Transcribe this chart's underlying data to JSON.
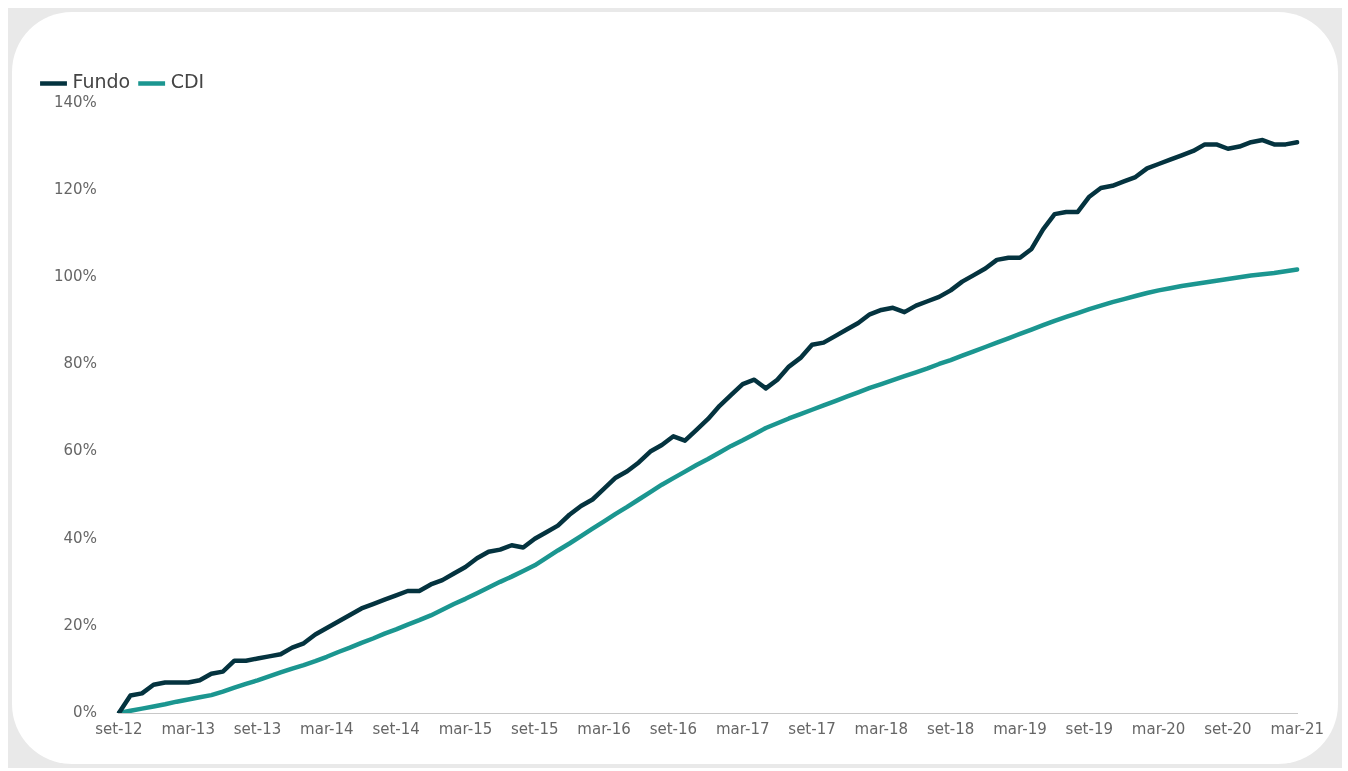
{
  "chart_data": {
    "type": "line",
    "categories": [
      "set-12",
      null,
      null,
      null,
      null,
      null,
      "mar-13",
      null,
      null,
      null,
      null,
      null,
      "set-13",
      null,
      null,
      null,
      null,
      null,
      "mar-14",
      null,
      null,
      null,
      null,
      null,
      "set-14",
      null,
      null,
      null,
      null,
      null,
      "mar-15",
      null,
      null,
      null,
      null,
      null,
      "set-15",
      null,
      null,
      null,
      null,
      null,
      "mar-16",
      null,
      null,
      null,
      null,
      null,
      "set-16",
      null,
      null,
      null,
      null,
      null,
      "mar-17",
      null,
      null,
      null,
      null,
      null,
      "set-17",
      null,
      null,
      null,
      null,
      null,
      "mar-18",
      null,
      null,
      null,
      null,
      null,
      "set-18",
      null,
      null,
      null,
      null,
      null,
      "mar-19",
      null,
      null,
      null,
      null,
      null,
      "set-19",
      null,
      null,
      null,
      null,
      null,
      "mar-20",
      null,
      null,
      null,
      null,
      null,
      "set-20",
      null,
      null,
      null,
      null,
      null,
      "mar-21"
    ],
    "series": [
      {
        "name": "Fundo",
        "color": "#04333f",
        "values": [
          0,
          4,
          4.5,
          6.5,
          7,
          7,
          7,
          7.5,
          9,
          9.5,
          12,
          12,
          12.5,
          13,
          13.5,
          15,
          16,
          18,
          19.5,
          21,
          22.5,
          24,
          25,
          26,
          27,
          28,
          28,
          29.5,
          30.5,
          32,
          33.5,
          35.5,
          37,
          37.5,
          38.5,
          38,
          40,
          41.5,
          43,
          45.5,
          47.5,
          49,
          51.5,
          54,
          55.5,
          57.5,
          60,
          61.5,
          63.5,
          62.5,
          65,
          67.5,
          70.5,
          73,
          75.5,
          76.5,
          74.5,
          76.5,
          79.5,
          81.5,
          84.5,
          85,
          86.5,
          88,
          89.5,
          91.5,
          92.5,
          93,
          92,
          93.5,
          94.5,
          95.5,
          97,
          99,
          100.5,
          102,
          104,
          104.5,
          104.5,
          106.5,
          111,
          114.5,
          115,
          115,
          118.5,
          120.5,
          121,
          122,
          123,
          125,
          126,
          127,
          128,
          129,
          130.5,
          130.5,
          129.5,
          130,
          131,
          131.5,
          130.5,
          130.5,
          131
        ]
      },
      {
        "name": "CDI",
        "color": "#1b9690",
        "values": [
          0,
          0.5,
          1.0,
          1.5,
          2.0,
          2.6,
          3.1,
          3.6,
          4.1,
          4.9,
          5.8,
          6.7,
          7.5,
          8.4,
          9.3,
          10.2,
          11.0,
          11.9,
          12.9,
          14.0,
          15.0,
          16.1,
          17.1,
          18.2,
          19.2,
          20.3,
          21.3,
          22.4,
          23.7,
          25.0,
          26.2,
          27.5,
          28.8,
          30.1,
          31.3,
          32.6,
          33.9,
          35.6,
          37.3,
          38.9,
          40.6,
          42.3,
          44.0,
          45.7,
          47.3,
          49.0,
          50.7,
          52.4,
          53.9,
          55.4,
          56.9,
          58.3,
          59.8,
          61.3,
          62.6,
          64.0,
          65.4,
          66.5,
          67.6,
          68.6,
          69.6,
          70.6,
          71.6,
          72.6,
          73.6,
          74.6,
          75.5,
          76.4,
          77.3,
          78.2,
          79.1,
          80.1,
          81.0,
          82.0,
          83.0,
          84.0,
          85.0,
          86.0,
          87.0,
          88.0,
          89.0,
          90.0,
          90.9,
          91.8,
          92.7,
          93.5,
          94.3,
          95.0,
          95.7,
          96.4,
          97.0,
          97.5,
          98.0,
          98.4,
          98.8,
          99.2,
          99.6,
          100.0,
          100.4,
          100.7,
          101.0,
          101.4,
          101.8
        ]
      }
    ],
    "ylim": [
      0,
      140
    ],
    "yticks": [
      {
        "value": 0,
        "label": "0%"
      },
      {
        "value": 20,
        "label": "20%"
      },
      {
        "value": 40,
        "label": "40%"
      },
      {
        "value": 60,
        "label": "60%"
      },
      {
        "value": 80,
        "label": "80%"
      },
      {
        "value": 100,
        "label": "100%"
      },
      {
        "value": 120,
        "label": "120%"
      },
      {
        "value": 140,
        "label": "140%"
      }
    ],
    "grid": false,
    "legend": "top left",
    "marker": "none",
    "line_style": "solid"
  }
}
